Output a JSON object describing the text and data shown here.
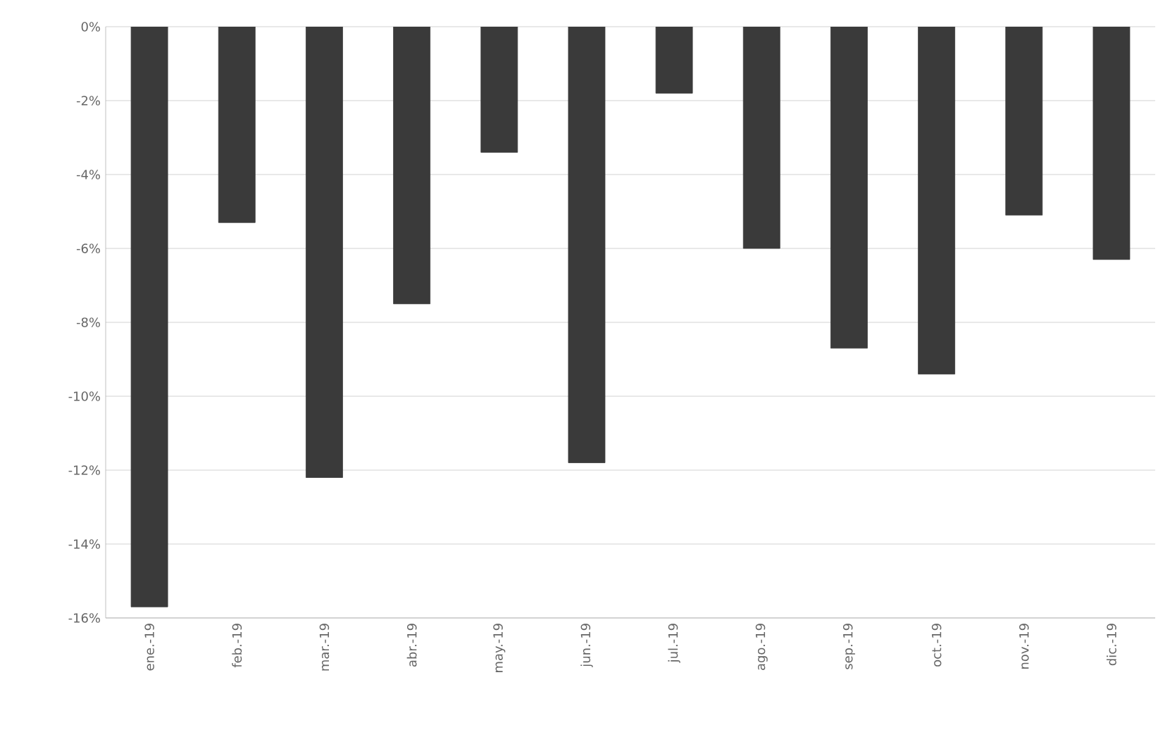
{
  "chart_data": {
    "type": "bar",
    "categories": [
      "ene.-19",
      "feb.-19",
      "mar.-19",
      "abr.-19",
      "may.-19",
      "jun.-19",
      "jul.-19",
      "ago.-19",
      "sep.-19",
      "oct.-19",
      "nov.-19",
      "dic.-19"
    ],
    "values": [
      -15.7,
      -5.3,
      -12.2,
      -7.5,
      -3.4,
      -11.8,
      -1.8,
      -6.0,
      -8.7,
      -9.4,
      -5.1,
      -6.3
    ],
    "color": "#3a3a3a",
    "ylim": [
      -16,
      0
    ],
    "yticks": [
      {
        "value": 0,
        "label": "0%"
      },
      {
        "value": -2,
        "label": "-2%"
      },
      {
        "value": -4,
        "label": "-4%"
      },
      {
        "value": -6,
        "label": "-6%"
      },
      {
        "value": -8,
        "label": "-8%"
      },
      {
        "value": -10,
        "label": "-10%"
      },
      {
        "value": -12,
        "label": "-12%"
      },
      {
        "value": -14,
        "label": "-14%"
      },
      {
        "value": -16,
        "label": "-16%"
      }
    ],
    "grid": "y"
  }
}
